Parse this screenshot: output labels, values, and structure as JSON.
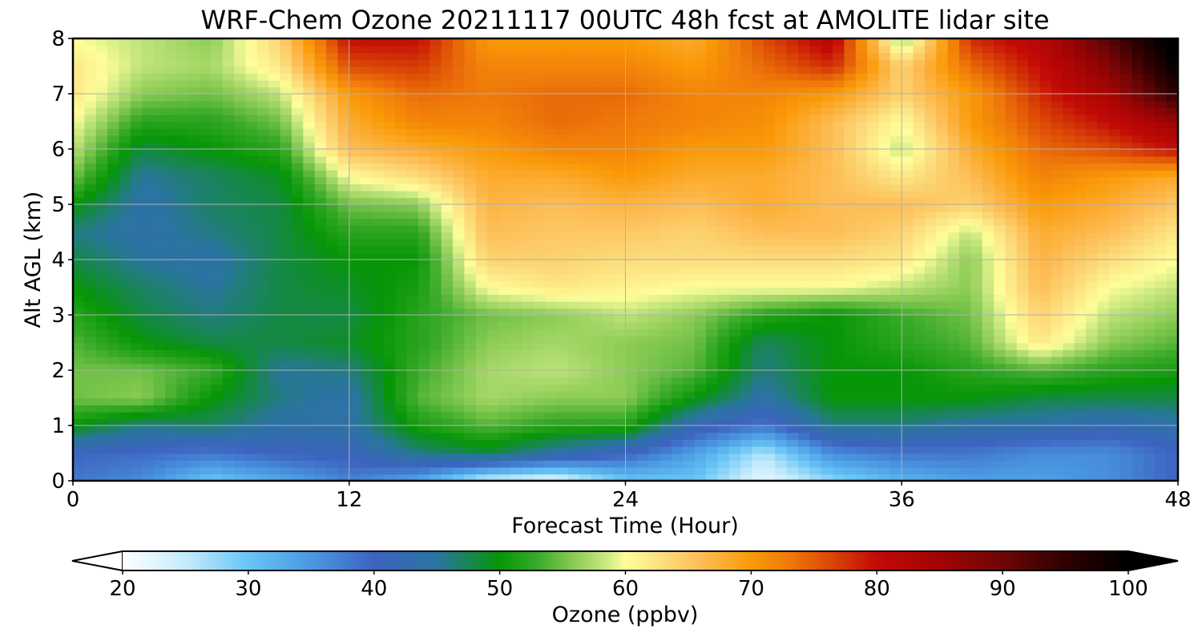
{
  "chart_data": {
    "type": "heatmap",
    "title": "WRF-Chem Ozone  20211117 00UTC 48h fcst at AMOLITE lidar site",
    "xlabel": "Forecast Time (Hour)",
    "ylabel": "Alt AGL (km)",
    "xlim": [
      0,
      48
    ],
    "ylim": [
      0,
      8
    ],
    "x_ticks": [
      "0",
      "12",
      "24",
      "36",
      "48"
    ],
    "y_ticks": [
      "0",
      "1",
      "2",
      "3",
      "4",
      "5",
      "6",
      "7",
      "8"
    ],
    "grid": true,
    "x": [
      0,
      3,
      6,
      9,
      12,
      15,
      18,
      21,
      24,
      27,
      30,
      33,
      36,
      39,
      42,
      45,
      48
    ],
    "y": [
      0,
      0.5,
      1,
      1.5,
      2,
      2.5,
      3,
      3.5,
      4,
      4.5,
      5,
      5.5,
      6,
      6.5,
      7,
      7.5,
      8
    ],
    "z_units": "ppbv",
    "z": [
      [
        38,
        36,
        30,
        33,
        37,
        33,
        24,
        22,
        30,
        30,
        22,
        28,
        32,
        34,
        34,
        36,
        40
      ],
      [
        40,
        39,
        38,
        40,
        41,
        46,
        48,
        44,
        40,
        34,
        26,
        36,
        38,
        38,
        36,
        36,
        40
      ],
      [
        50,
        46,
        47,
        44,
        44,
        51,
        54,
        52,
        52,
        42,
        38,
        46,
        46,
        44,
        44,
        42,
        44
      ],
      [
        55,
        56,
        50,
        46,
        44,
        54,
        57,
        56,
        56,
        50,
        44,
        50,
        50,
        50,
        48,
        48,
        48
      ],
      [
        55,
        55,
        53,
        45,
        46,
        53,
        57,
        58,
        56,
        54,
        46,
        50,
        50,
        52,
        54,
        52,
        51
      ],
      [
        54,
        50,
        48,
        48,
        49,
        52,
        56,
        57,
        56,
        55,
        47,
        50,
        52,
        54,
        62,
        56,
        54
      ],
      [
        52,
        48,
        46,
        48,
        48,
        52,
        55,
        56,
        58,
        56,
        52,
        50,
        53,
        55,
        64,
        58,
        56
      ],
      [
        50,
        47,
        45,
        48,
        49,
        51,
        60,
        62,
        61,
        60,
        60,
        60,
        58,
        56,
        66,
        60,
        58
      ],
      [
        48,
        45,
        44,
        48,
        50,
        50,
        64,
        64,
        63,
        63,
        63,
        63,
        62,
        56,
        67,
        63,
        60
      ],
      [
        46,
        44,
        46,
        48,
        52,
        52,
        66,
        65,
        65,
        64,
        66,
        66,
        64,
        58,
        68,
        66,
        62
      ],
      [
        50,
        44,
        47,
        48,
        55,
        56,
        67,
        66,
        67,
        66,
        68,
        66,
        66,
        64,
        70,
        68,
        65
      ],
      [
        55,
        45,
        47,
        49,
        60,
        63,
        68,
        68,
        70,
        68,
        68,
        66,
        62,
        66,
        72,
        70,
        68
      ],
      [
        58,
        48,
        50,
        52,
        66,
        68,
        70,
        72,
        72,
        70,
        70,
        66,
        58,
        68,
        74,
        76,
        80
      ],
      [
        60,
        52,
        52,
        55,
        68,
        72,
        72,
        74,
        73,
        72,
        71,
        66,
        60,
        70,
        76,
        80,
        86
      ],
      [
        62,
        56,
        55,
        58,
        70,
        74,
        73,
        74,
        74,
        72,
        72,
        70,
        64,
        70,
        78,
        84,
        96
      ],
      [
        62,
        58,
        57,
        62,
        76,
        77,
        72,
        72,
        72,
        70,
        74,
        78,
        64,
        74,
        80,
        88,
        100
      ],
      [
        60,
        58,
        56,
        64,
        80,
        80,
        70,
        70,
        70,
        68,
        76,
        82,
        56,
        78,
        82,
        92,
        102
      ]
    ],
    "colorbar": {
      "label": "Ozone  (ppbv)",
      "ticks": [
        "20",
        "30",
        "40",
        "50",
        "60",
        "70",
        "80",
        "90",
        "100"
      ],
      "min": 20,
      "max": 100,
      "extend": "both",
      "stops": [
        [
          20,
          "#ffffff"
        ],
        [
          25,
          "#c5ecfb"
        ],
        [
          30,
          "#68c5f5"
        ],
        [
          35,
          "#4a98e2"
        ],
        [
          40,
          "#3d63c0"
        ],
        [
          45,
          "#2a75a0"
        ],
        [
          50,
          "#069606"
        ],
        [
          53,
          "#3aaa2a"
        ],
        [
          56,
          "#8ccc56"
        ],
        [
          58,
          "#bfe37a"
        ],
        [
          60,
          "#fefe9a"
        ],
        [
          63,
          "#fcdd7c"
        ],
        [
          66,
          "#fdbd56"
        ],
        [
          70,
          "#fa9a08"
        ],
        [
          73,
          "#ef7a0a"
        ],
        [
          76,
          "#dd4c06"
        ],
        [
          80,
          "#c20a06"
        ],
        [
          85,
          "#a20404"
        ],
        [
          90,
          "#6e0606"
        ],
        [
          95,
          "#300000"
        ],
        [
          100,
          "#000000"
        ]
      ]
    }
  }
}
